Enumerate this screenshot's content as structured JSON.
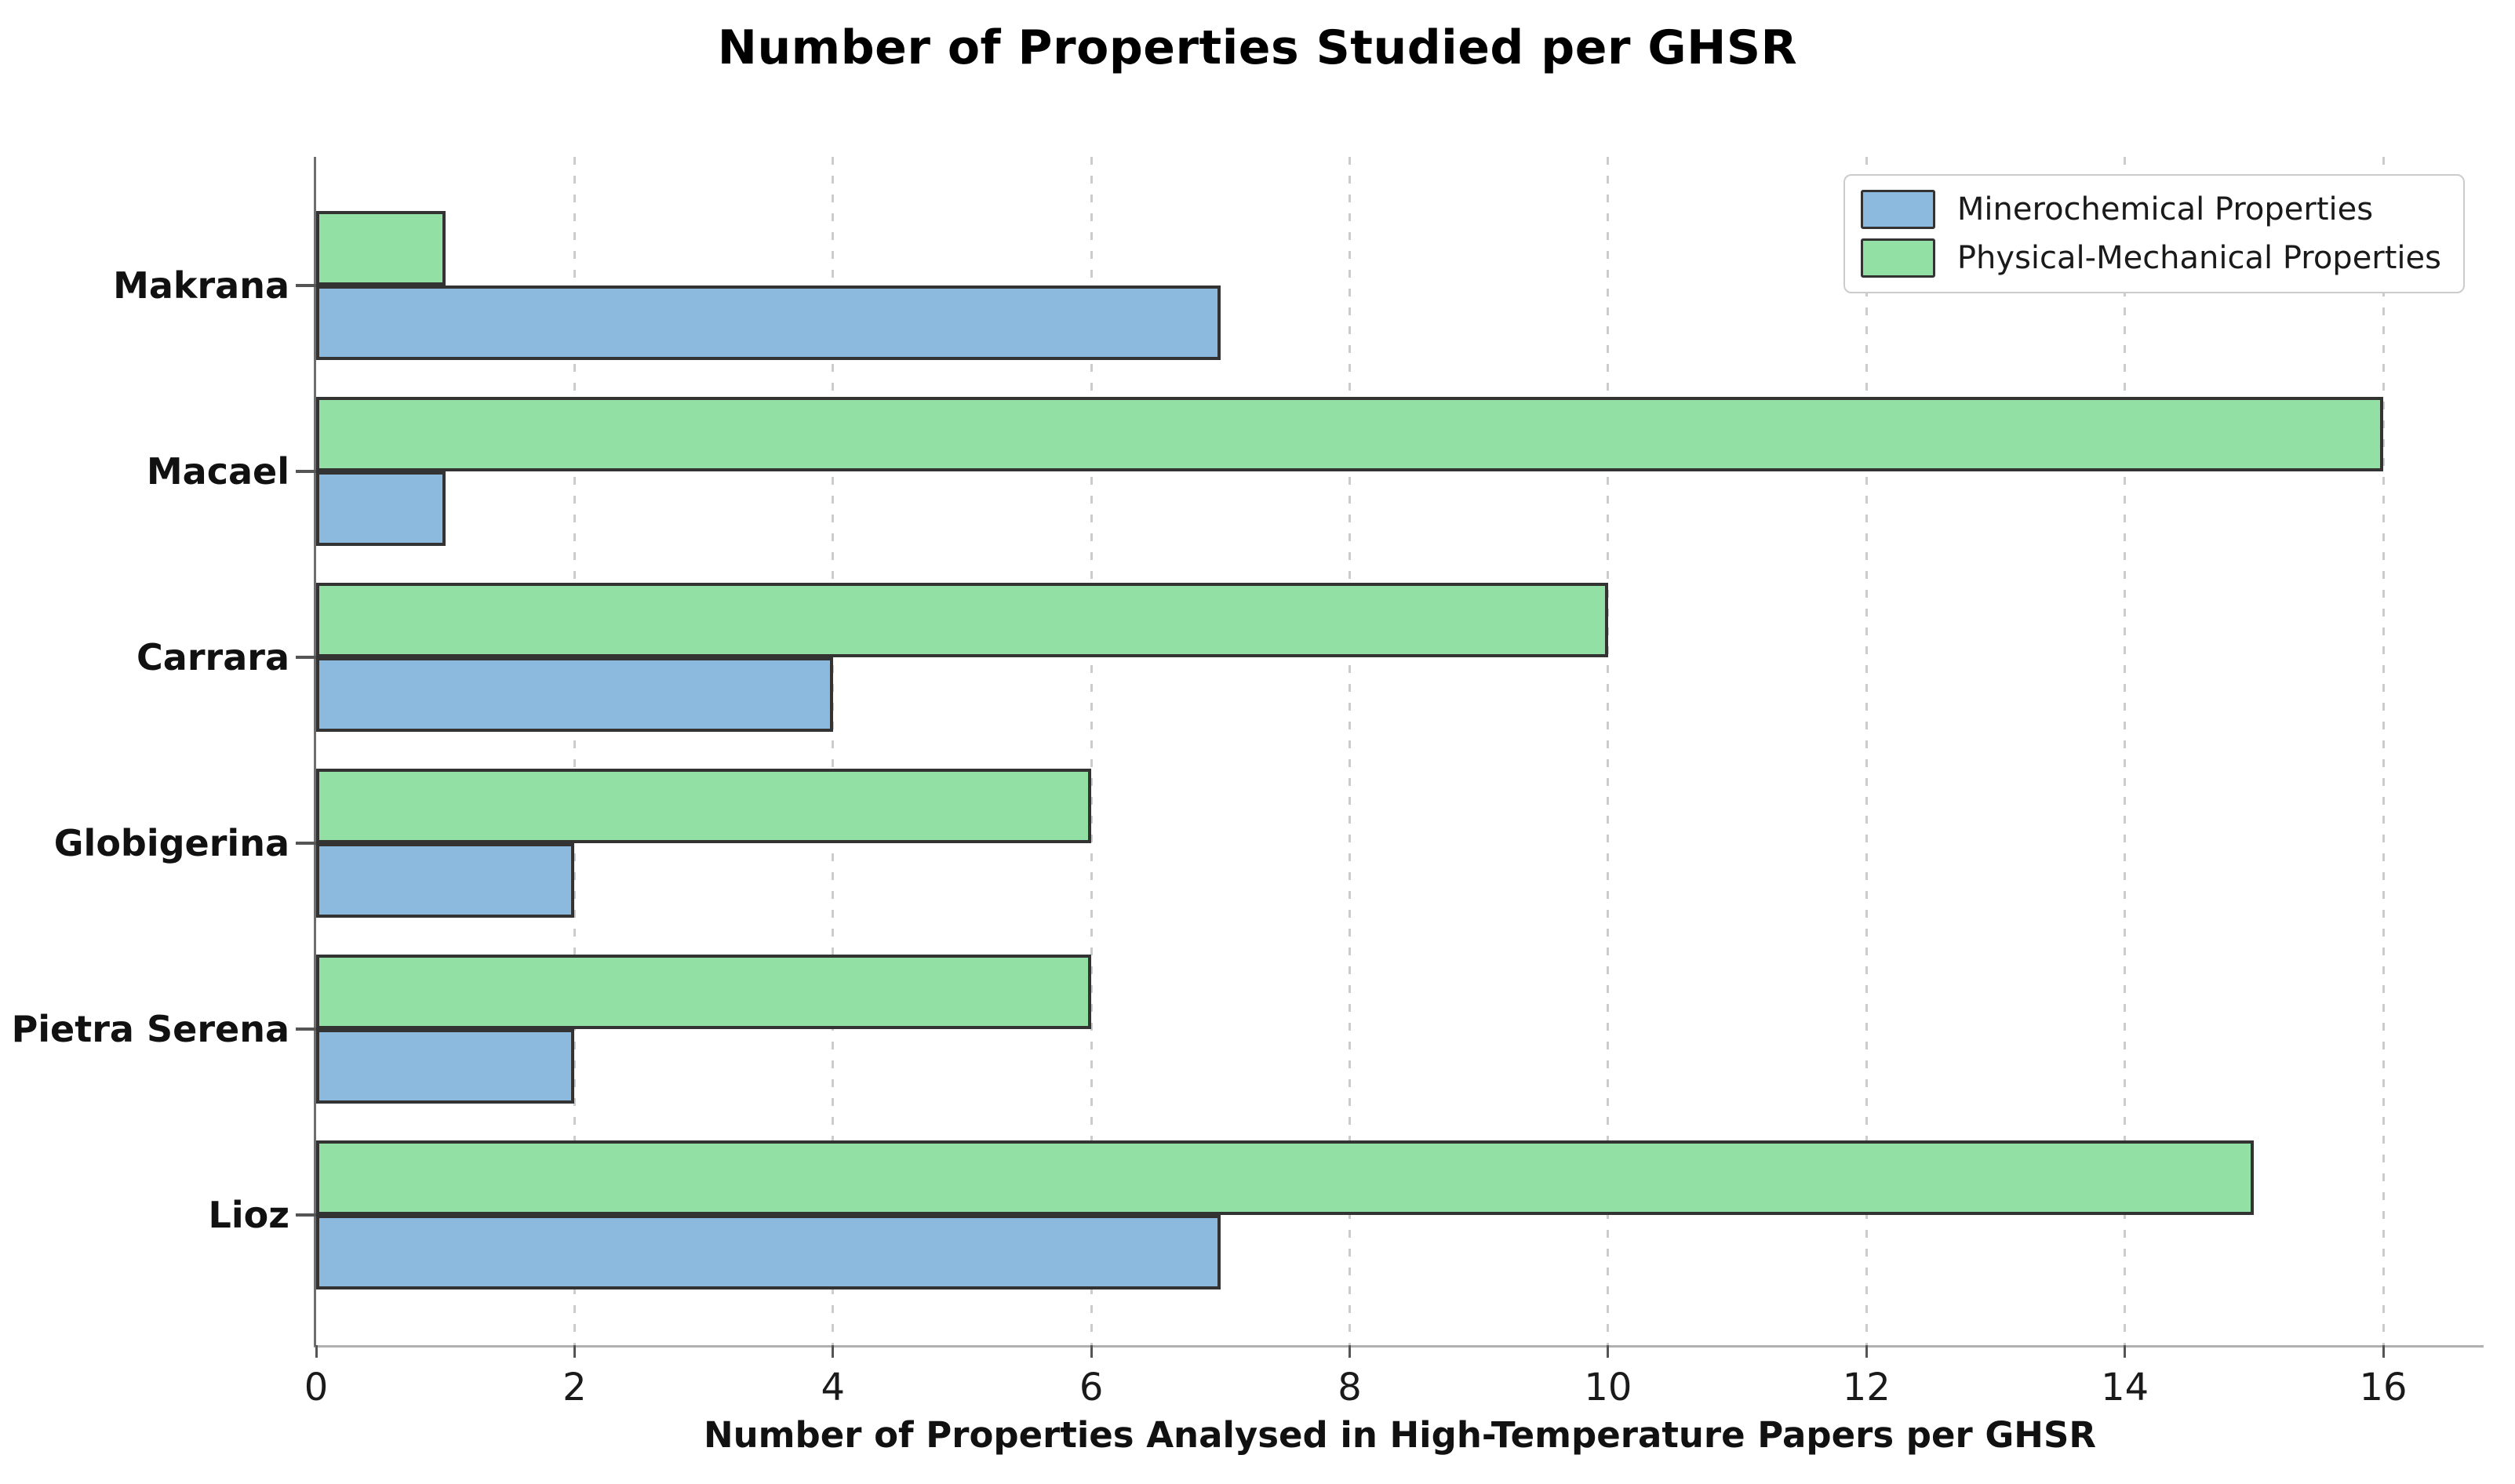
{
  "chart_data": {
    "type": "bar",
    "orientation": "horizontal",
    "title": "Number of Properties Studied per GHSR",
    "xlabel": "Number of Properties Analysed in High-Temperature Papers per GHSR",
    "ylabel": "",
    "categories": [
      "Makrana",
      "Macael",
      "Carrara",
      "Globigerina",
      "Pietra Serena",
      "Lioz"
    ],
    "series": [
      {
        "name": "Minerochemical Properties",
        "color": "#8cbade",
        "position_in_group": "below-center",
        "values": [
          7,
          1,
          4,
          2,
          2,
          7
        ]
      },
      {
        "name": "Physical-Mechanical Properties",
        "color": "#93e0a4",
        "position_in_group": "above-center",
        "values": [
          1,
          16,
          10,
          6,
          6,
          15
        ]
      }
    ],
    "xlim": [
      0,
      16.78
    ],
    "xticks": [
      0,
      2,
      4,
      6,
      8,
      10,
      12,
      14,
      16
    ],
    "grid": "vertical dashed gridlines at even ticks",
    "legend_position": "upper right",
    "bar_edge_color": "#333333",
    "gridline_color": "#cccccc",
    "left_spine_color": "#6e6e6e",
    "bottom_spine_color": "#b0b0b0",
    "text_color": "#111111",
    "background_color": "#ffffff"
  }
}
